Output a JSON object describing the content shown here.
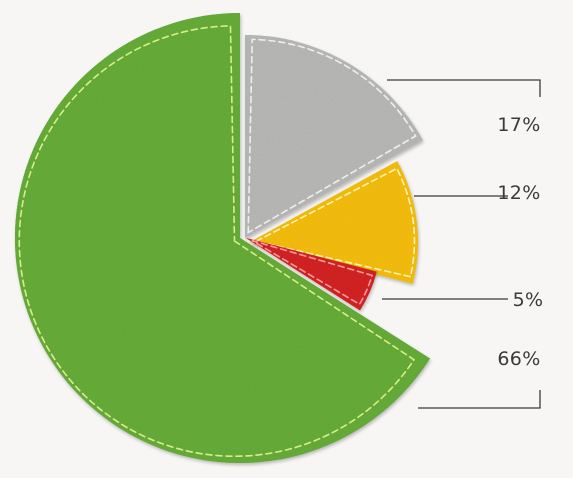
{
  "chart_data": {
    "type": "pie",
    "title": "",
    "slices": [
      {
        "value": 17,
        "label": "17%",
        "color": "#b9b9b7",
        "stitch": "#eeeeee",
        "explode": "small"
      },
      {
        "value": 12,
        "label": "12%",
        "color": "#f6be11",
        "stitch": "#fff3b0",
        "explode": "small"
      },
      {
        "value": 5,
        "label": "5%",
        "color": "#d42124",
        "stitch": "#ff9a9a",
        "explode": "none"
      },
      {
        "value": 66,
        "label": "66%",
        "color": "#67ad3a",
        "stitch": "#d6ee8a",
        "explode": "none"
      }
    ],
    "legend": "none",
    "style": "felt-cutout"
  },
  "colors": {
    "background": "#f7f6f4",
    "text": "#3a3a3a"
  }
}
